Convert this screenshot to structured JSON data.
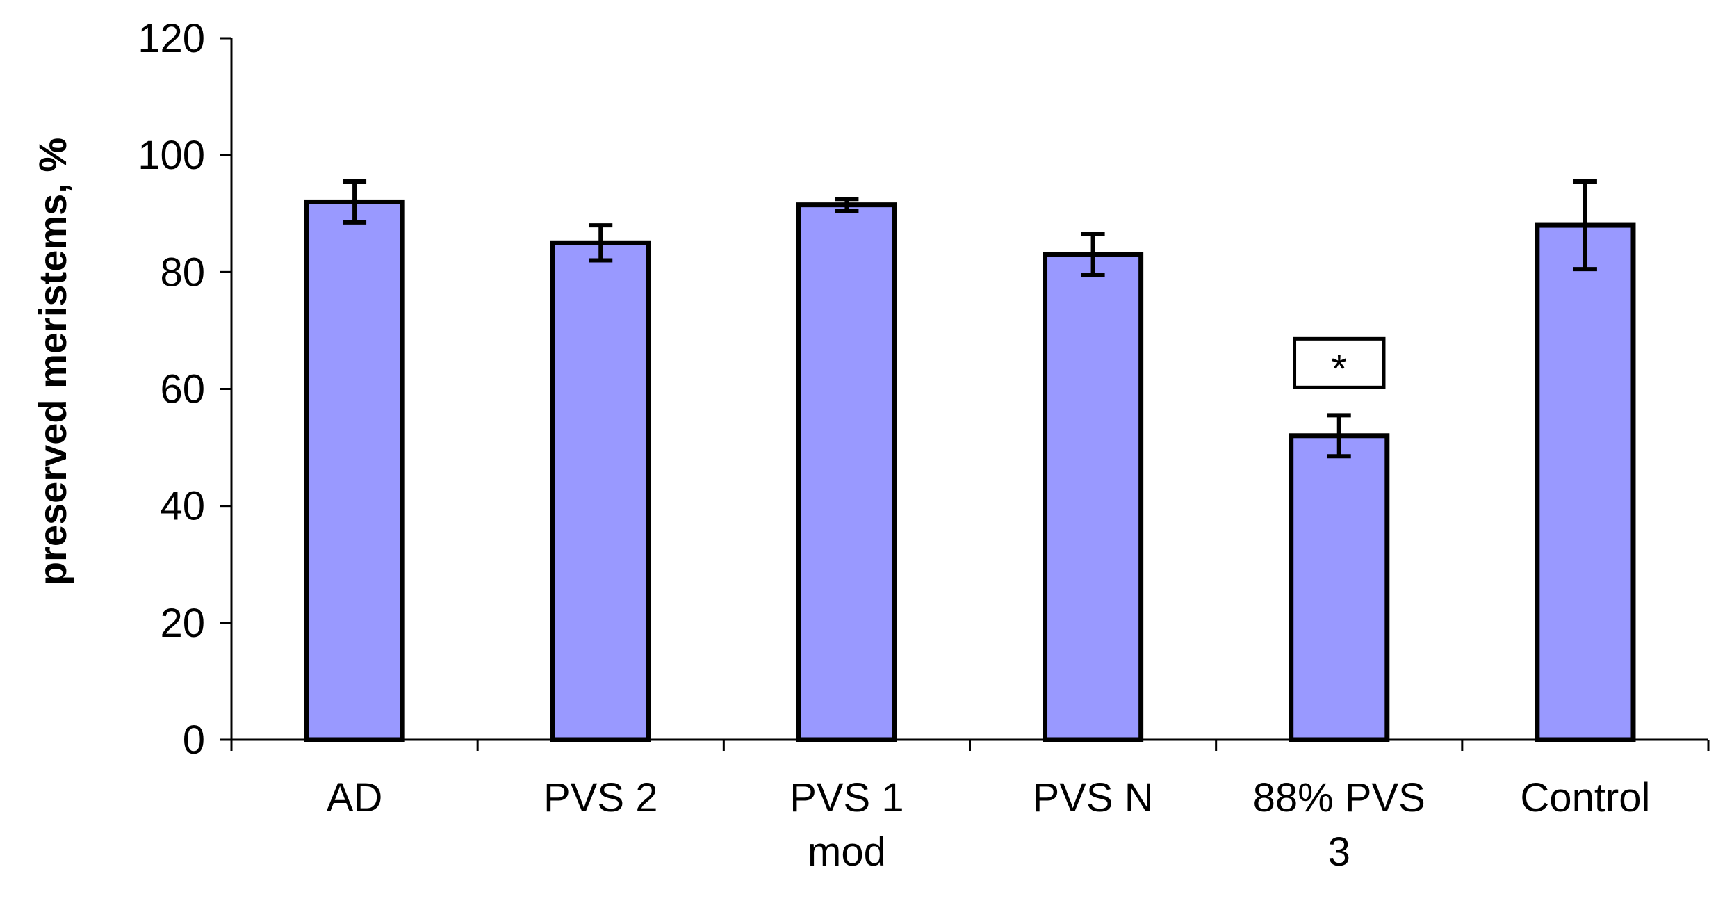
{
  "chart_data": {
    "type": "bar",
    "title": "",
    "xlabel": "",
    "ylabel": "preserved meristems, %",
    "ylim": [
      0,
      120
    ],
    "yticks": [
      0,
      20,
      40,
      60,
      80,
      100,
      120
    ],
    "categories": [
      [
        "AD"
      ],
      [
        "PVS 2"
      ],
      [
        "PVS 1",
        "mod"
      ],
      [
        "PVS N"
      ],
      [
        "88% PVS",
        "3"
      ],
      [
        "Control"
      ]
    ],
    "values": [
      92,
      85,
      91.5,
      83,
      52,
      88
    ],
    "error": [
      3.5,
      3,
      1,
      3.5,
      3.5,
      7.5
    ],
    "annotations": [
      {
        "category_index": 4,
        "text": "*"
      }
    ],
    "bar_color": "#9999ff",
    "edge_color": "#000000",
    "grid": false,
    "legend": "none"
  }
}
